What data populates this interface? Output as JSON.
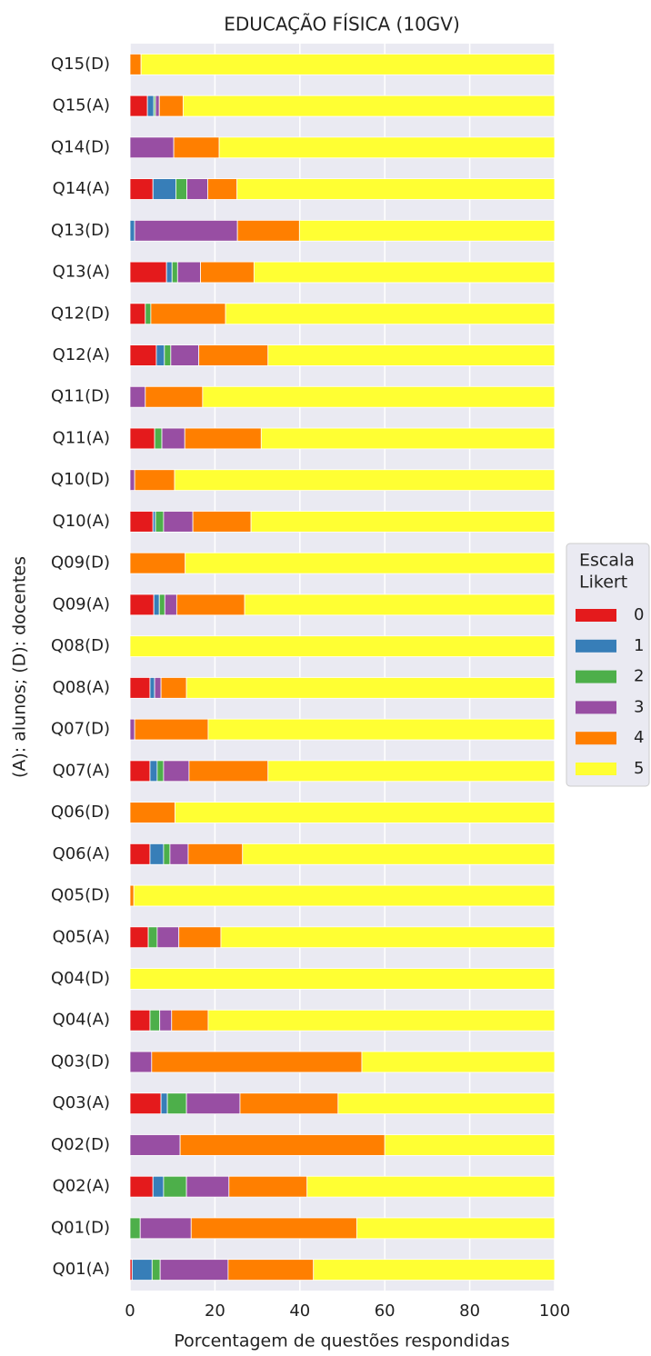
{
  "chart_data": {
    "type": "stacked_barh",
    "title": "EDUCAÇÃO FÍSICA (10GV)",
    "xlabel": "Porcentagem de questões respondidas",
    "ylabel": "(A): alunos; (D): docentes",
    "legend_title": [
      "Escala",
      "Likert"
    ],
    "legend_position": "right",
    "grid": true,
    "xlim": [
      0,
      100
    ],
    "xticks": [
      0,
      20,
      40,
      60,
      80,
      100
    ],
    "categories": [
      "Q01(A)",
      "Q01(D)",
      "Q02(A)",
      "Q02(D)",
      "Q03(A)",
      "Q03(D)",
      "Q04(A)",
      "Q04(D)",
      "Q05(A)",
      "Q05(D)",
      "Q06(A)",
      "Q06(D)",
      "Q07(A)",
      "Q07(D)",
      "Q08(A)",
      "Q08(D)",
      "Q09(A)",
      "Q09(D)",
      "Q10(A)",
      "Q10(D)",
      "Q11(A)",
      "Q11(D)",
      "Q12(A)",
      "Q12(D)",
      "Q13(A)",
      "Q13(D)",
      "Q14(A)",
      "Q14(D)",
      "Q15(A)",
      "Q15(D)"
    ],
    "series": [
      {
        "name": "0",
        "color": "#e41a1c",
        "values": [
          0.5,
          0,
          5.4,
          0,
          7.3,
          0,
          4.7,
          0,
          4.3,
          0,
          4.7,
          0,
          4.7,
          0,
          4.7,
          0,
          5.6,
          0,
          5.4,
          0,
          5.8,
          0,
          6.2,
          3.6,
          8.6,
          0,
          5.4,
          0,
          4.1,
          0
        ]
      },
      {
        "name": "1",
        "color": "#377eb8",
        "values": [
          4.7,
          0,
          2.5,
          0,
          1.5,
          0,
          0,
          0,
          0,
          0,
          3.2,
          0,
          1.7,
          0,
          1.1,
          0,
          1.3,
          0,
          0.6,
          0,
          0,
          0,
          1.9,
          0,
          1.3,
          1.1,
          5.4,
          0,
          1.5,
          0
        ]
      },
      {
        "name": "2",
        "color": "#4daf4a",
        "values": [
          1.9,
          2.4,
          5.4,
          0,
          4.5,
          0,
          2.3,
          0,
          2.1,
          0,
          1.5,
          0,
          1.5,
          0,
          0,
          0,
          1.3,
          0,
          1.9,
          0,
          1.7,
          0,
          1.5,
          1.3,
          1.3,
          0,
          2.6,
          0,
          0.4,
          0
        ]
      },
      {
        "name": "3",
        "color": "#984ea3",
        "values": [
          16,
          12,
          10,
          11.8,
          12.6,
          5.1,
          2.8,
          0,
          5.1,
          0,
          4.3,
          0,
          6,
          1.1,
          1.5,
          0,
          2.8,
          0,
          6.9,
          1.1,
          5.4,
          3.6,
          6.6,
          0,
          5.4,
          24.2,
          4.9,
          10.3,
          0.9,
          0
        ]
      },
      {
        "name": "4",
        "color": "#ff7f00",
        "values": [
          20.1,
          39,
          18.4,
          48.2,
          23.1,
          49.5,
          8.6,
          0,
          9.9,
          0.9,
          12.8,
          10.6,
          18.6,
          17.3,
          6,
          0,
          16,
          13,
          13.7,
          9.4,
          18,
          13.5,
          16.3,
          17.6,
          12.6,
          14.6,
          6.9,
          10.7,
          5.6,
          2.6
        ]
      },
      {
        "name": "5",
        "color": "#ffff33",
        "values": [
          56.8,
          46.6,
          58.3,
          40,
          51,
          45.4,
          81.6,
          100,
          78.6,
          99.1,
          73.5,
          89.4,
          67.5,
          81.6,
          86.7,
          100,
          73,
          87,
          71.5,
          89.5,
          69.1,
          82.9,
          67.5,
          77.5,
          70.8,
          60.1,
          74.8,
          79,
          87.5,
          97.4
        ]
      }
    ]
  }
}
